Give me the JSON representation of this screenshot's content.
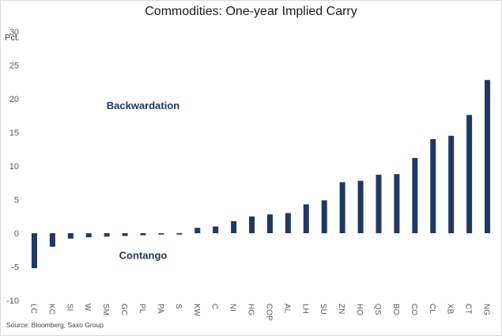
{
  "chart_data": {
    "type": "bar",
    "title": "Commodities: One-year Implied Carry",
    "ylabel": "Pct.",
    "xlabel": "",
    "ylim": [
      -10,
      30
    ],
    "yticks": [
      -10,
      -5,
      0,
      5,
      10,
      15,
      20,
      25,
      30
    ],
    "grid": false,
    "bar_color": "#1f3864",
    "categories": [
      "LC",
      "KC",
      "SI",
      "W",
      "SM",
      "GC",
      "PL",
      "PA",
      "S",
      "KW",
      "C",
      "NI",
      "HG",
      "COP",
      "AL",
      "LH",
      "SU",
      "ZN",
      "HO",
      "QS",
      "BO",
      "CO",
      "CL",
      "XB",
      "CT",
      "NG"
    ],
    "values": [
      -5.2,
      -2.0,
      -0.8,
      -0.6,
      -0.5,
      -0.4,
      -0.3,
      -0.2,
      -0.2,
      0.8,
      1.0,
      1.8,
      2.5,
      2.8,
      3.0,
      4.3,
      4.9,
      7.6,
      7.8,
      8.7,
      8.8,
      11.2,
      14.0,
      14.5,
      17.6,
      22.8
    ],
    "annotations": [
      {
        "text": "Backwardation",
        "x_category": "PL",
        "y": 18.5
      },
      {
        "text": "Contango",
        "x_category": "PL",
        "y": -3.8
      }
    ],
    "source": "Source: Bloomberg, Saxo Group"
  }
}
